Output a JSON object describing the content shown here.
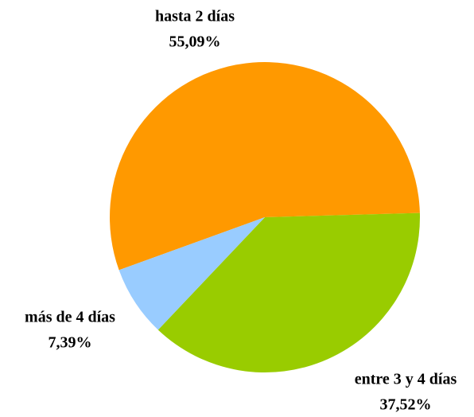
{
  "chart_data": {
    "type": "pie",
    "categories": [
      "hasta 2 días",
      "entre 3 y 4 días",
      "más de 4 días"
    ],
    "values": [
      55.09,
      37.52,
      7.39
    ],
    "value_labels": [
      "55,09%",
      "37,52%",
      "7,39%"
    ],
    "colors": [
      "#ff9900",
      "#99cc00",
      "#99ccff"
    ]
  }
}
